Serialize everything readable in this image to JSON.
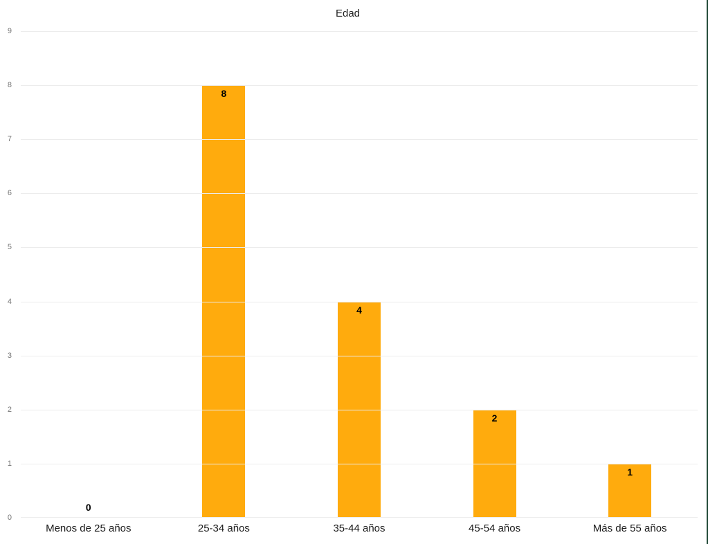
{
  "chart_data": {
    "type": "bar",
    "title": "Edad",
    "categories": [
      "Menos de 25 años",
      "25-34 años",
      "35-44 años",
      "45-54 años",
      "Más de 55 años"
    ],
    "values": [
      0,
      8,
      4,
      2,
      1
    ],
    "xlabel": "",
    "ylabel": "",
    "ylim": [
      0,
      9
    ],
    "ytick_step": 1,
    "ytick_labels": [
      "0",
      "1",
      "2",
      "3",
      "4",
      "5",
      "6",
      "7",
      "8",
      "9"
    ],
    "grid": "horizontal",
    "legend_position": "none",
    "bar_color": "#FFAB0D",
    "gridline_color": "#ECECEC",
    "ytick_color": "#757575",
    "category_label_color": "#1A1A1A",
    "value_label_color": "#000000",
    "background_color": "#FFFFFF"
  },
  "frame": {
    "right_edge_color": "#1C4533"
  }
}
